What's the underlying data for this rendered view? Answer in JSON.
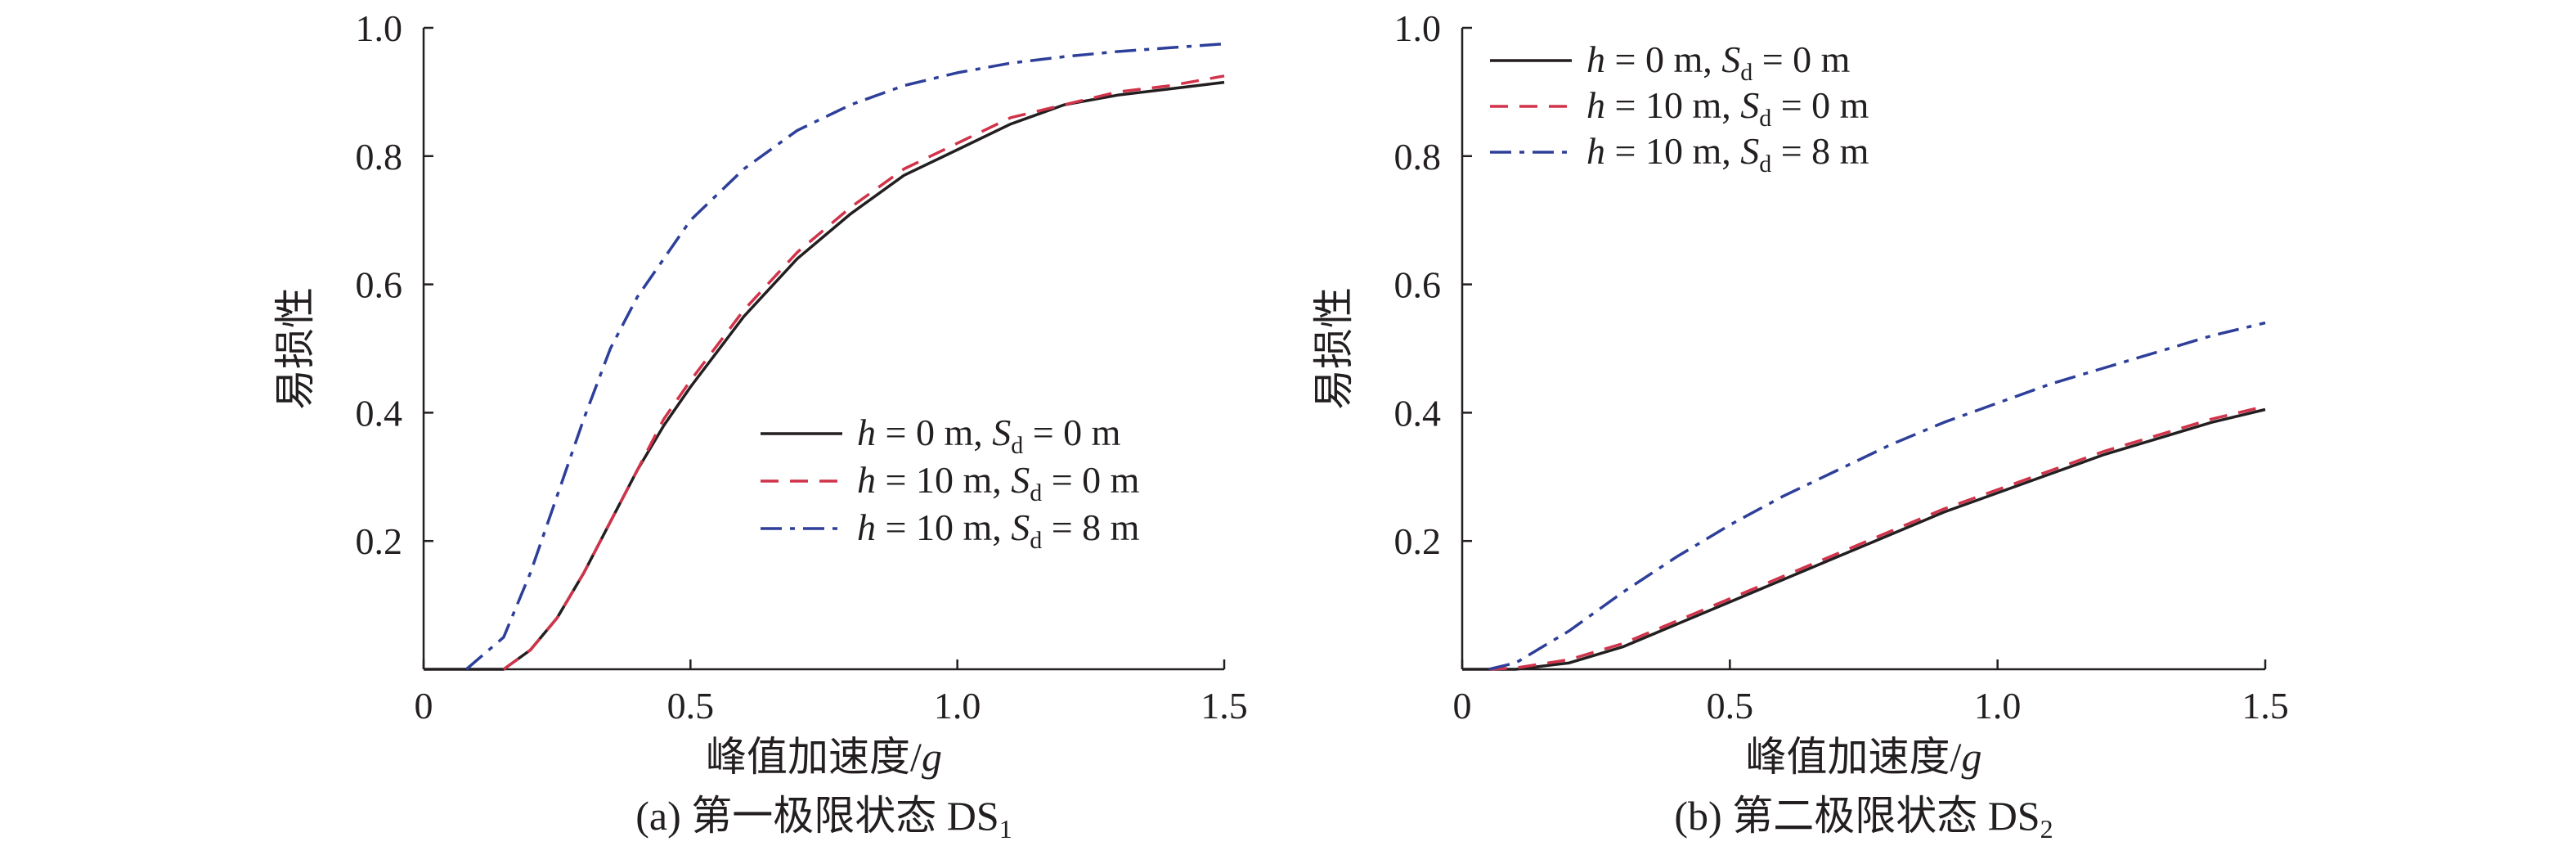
{
  "chart_data": [
    {
      "type": "line",
      "caption": {
        "prefix": "(a) 第一极限状态 DS",
        "sub": "1"
      },
      "xlabel": {
        "text": "峰值加速度/",
        "italic": "g"
      },
      "ylabel": "易损性",
      "xlim": [
        0,
        1.5
      ],
      "ylim": [
        0,
        1.0
      ],
      "xticks": [
        "0",
        "0.5",
        "1.0",
        "1.5"
      ],
      "yticks": [
        "0.2",
        "0.4",
        "0.6",
        "0.8",
        "1.0"
      ],
      "grid": false,
      "legend": "bottom-right",
      "series": [
        {
          "h": "0",
          "s": "0",
          "color": "#231f20",
          "dash": "solid",
          "x": [
            0,
            0.15,
            0.2,
            0.25,
            0.3,
            0.35,
            0.4,
            0.45,
            0.5,
            0.6,
            0.7,
            0.8,
            0.9,
            1.0,
            1.1,
            1.2,
            1.3,
            1.4,
            1.5
          ],
          "y": [
            0,
            0,
            0.03,
            0.08,
            0.15,
            0.23,
            0.31,
            0.38,
            0.44,
            0.55,
            0.64,
            0.71,
            0.77,
            0.81,
            0.85,
            0.88,
            0.895,
            0.905,
            0.915
          ]
        },
        {
          "h": "10",
          "s": "0",
          "color": "#d0334a",
          "dash": "dashed",
          "x": [
            0.15,
            0.2,
            0.25,
            0.3,
            0.35,
            0.4,
            0.45,
            0.5,
            0.6,
            0.7,
            0.8,
            0.9,
            1.0,
            1.1,
            1.2,
            1.3,
            1.4,
            1.5
          ],
          "y": [
            0,
            0.03,
            0.08,
            0.15,
            0.23,
            0.31,
            0.39,
            0.45,
            0.56,
            0.65,
            0.72,
            0.78,
            0.82,
            0.86,
            0.88,
            0.9,
            0.91,
            0.925
          ]
        },
        {
          "h": "10",
          "s": "8",
          "color": "#2e3f9a",
          "dash": "dashdot",
          "x": [
            0.08,
            0.15,
            0.2,
            0.25,
            0.3,
            0.35,
            0.4,
            0.5,
            0.6,
            0.7,
            0.8,
            0.9,
            1.0,
            1.1,
            1.2,
            1.3,
            1.4,
            1.5
          ],
          "y": [
            0,
            0.05,
            0.15,
            0.27,
            0.39,
            0.5,
            0.58,
            0.7,
            0.78,
            0.84,
            0.88,
            0.91,
            0.93,
            0.945,
            0.955,
            0.963,
            0.969,
            0.975
          ]
        }
      ]
    },
    {
      "type": "line",
      "caption": {
        "prefix": "(b) 第二极限状态 DS",
        "sub": "2"
      },
      "xlabel": {
        "text": "峰值加速度/",
        "italic": "g"
      },
      "ylabel": "易损性",
      "xlim": [
        0,
        1.5
      ],
      "ylim": [
        0,
        1.0
      ],
      "xticks": [
        "0",
        "0.5",
        "1.0",
        "1.5"
      ],
      "yticks": [
        "0.2",
        "0.4",
        "0.6",
        "0.8",
        "1.0"
      ],
      "grid": false,
      "legend": "top-left",
      "series": [
        {
          "h": "0",
          "s": "0",
          "color": "#231f20",
          "dash": "solid",
          "x": [
            0,
            0.1,
            0.2,
            0.3,
            0.4,
            0.5,
            0.6,
            0.7,
            0.8,
            0.9,
            1.0,
            1.1,
            1.2,
            1.3,
            1.4,
            1.5
          ],
          "y": [
            0,
            0,
            0.01,
            0.035,
            0.07,
            0.105,
            0.14,
            0.175,
            0.21,
            0.245,
            0.275,
            0.305,
            0.335,
            0.36,
            0.385,
            0.405
          ]
        },
        {
          "h": "10",
          "s": "0",
          "color": "#d0334a",
          "dash": "dashed",
          "x": [
            0.05,
            0.1,
            0.2,
            0.3,
            0.4,
            0.5,
            0.6,
            0.7,
            0.8,
            0.9,
            1.0,
            1.1,
            1.2,
            1.3,
            1.4,
            1.5
          ],
          "y": [
            0,
            0.002,
            0.015,
            0.04,
            0.075,
            0.11,
            0.145,
            0.18,
            0.215,
            0.25,
            0.28,
            0.31,
            0.34,
            0.365,
            0.39,
            0.41
          ]
        },
        {
          "h": "10",
          "s": "8",
          "color": "#2e3f9a",
          "dash": "dashdot",
          "x": [
            0.05,
            0.1,
            0.2,
            0.3,
            0.4,
            0.5,
            0.6,
            0.7,
            0.8,
            0.9,
            1.0,
            1.1,
            1.2,
            1.3,
            1.4,
            1.5
          ],
          "y": [
            0,
            0.01,
            0.06,
            0.12,
            0.175,
            0.225,
            0.27,
            0.31,
            0.35,
            0.385,
            0.415,
            0.445,
            0.47,
            0.495,
            0.52,
            0.54
          ]
        }
      ]
    }
  ]
}
